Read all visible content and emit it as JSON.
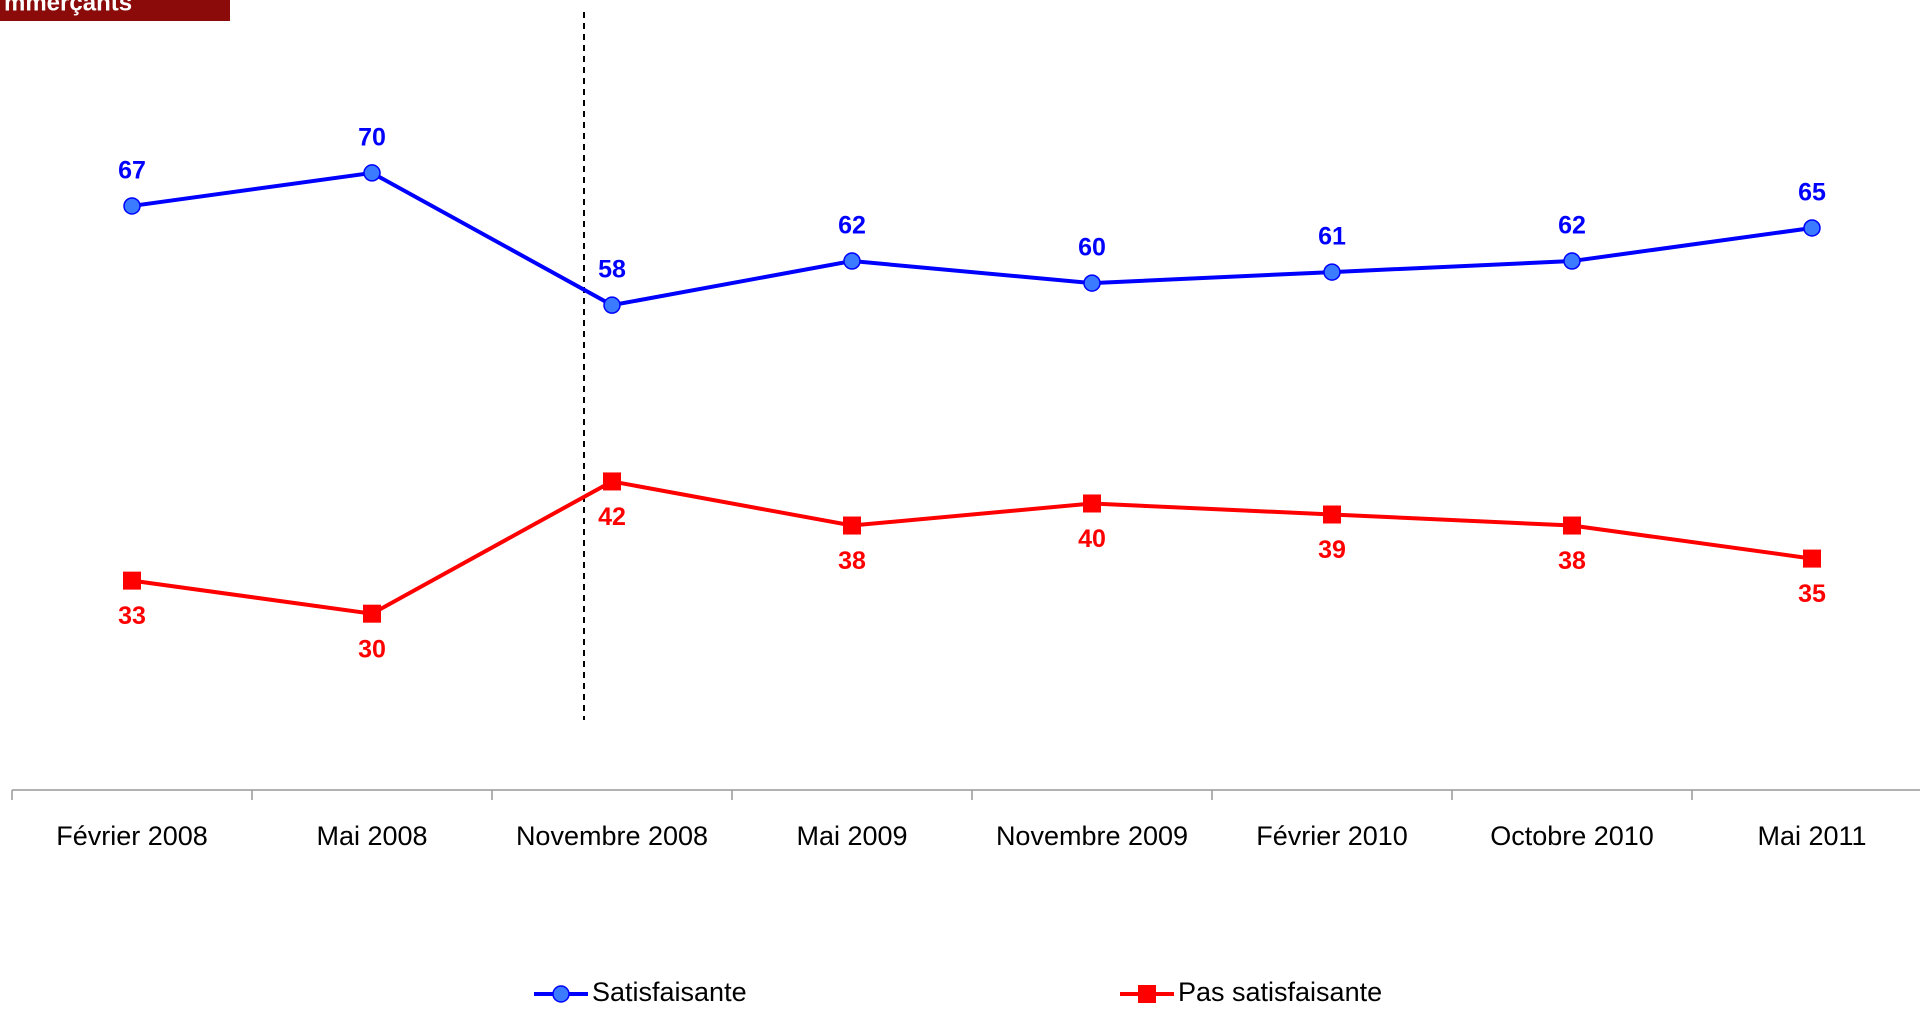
{
  "header": {
    "title": "mmerçants"
  },
  "chart_data": {
    "type": "line",
    "categories": [
      "Février 2008",
      "Mai 2008",
      "Novembre 2008",
      "Mai 2009",
      "Novembre 2009",
      "Février 2010",
      "Octobre 2010",
      "Mai 2011"
    ],
    "series": [
      {
        "name": "Satisfaisante",
        "color": "#0000ff",
        "marker": "circle",
        "values": [
          67,
          70,
          58,
          62,
          60,
          61,
          62,
          65
        ]
      },
      {
        "name": "Pas satisfaisante",
        "color": "#ff0000",
        "marker": "square",
        "values": [
          33,
          30,
          42,
          38,
          40,
          39,
          38,
          35
        ]
      }
    ],
    "ylim": [
      14,
      80
    ],
    "grid": false
  }
}
